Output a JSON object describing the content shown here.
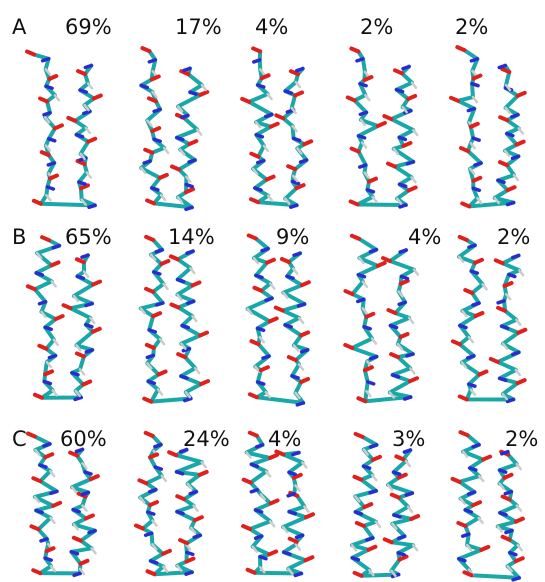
{
  "panels": [
    {
      "label": "A",
      "clusters": [
        "69%",
        "17%",
        "4%",
        "2%",
        "2%"
      ]
    },
    {
      "label": "B",
      "clusters": [
        "65%",
        "14%",
        "9%",
        "4%",
        "2%"
      ]
    },
    {
      "label": "C",
      "clusters": [
        "60%",
        "24%",
        "4%",
        "3%",
        "2%"
      ]
    }
  ]
}
